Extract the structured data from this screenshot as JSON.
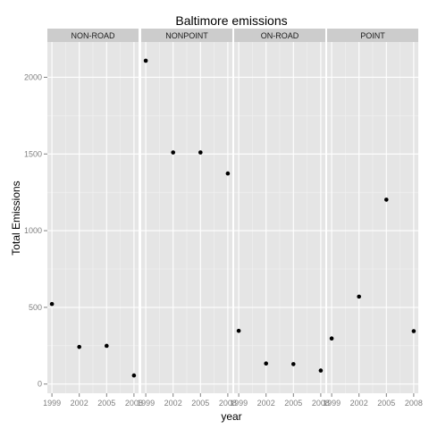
{
  "chart_data": {
    "type": "scatter",
    "title": "Baltimore emissions",
    "xlabel": "year",
    "ylabel": "Total Emissions",
    "x_ticks": [
      1999,
      2002,
      2005,
      2008
    ],
    "x_tick_labels": [
      "1999",
      "2002",
      "2005",
      "2008"
    ],
    "y_ticks": [
      0,
      500,
      1000,
      1500,
      2000
    ],
    "y_tick_labels": [
      "0",
      "500",
      "1000",
      "1500",
      "2000"
    ],
    "xlim": [
      1998.5,
      2008.5
    ],
    "ylim": [
      -60,
      2230
    ],
    "grid": true,
    "facets": [
      {
        "name": "NON-ROAD",
        "x": [
          1999,
          2002,
          2005,
          2008
        ],
        "values": [
          522,
          242,
          249,
          56
        ]
      },
      {
        "name": "NONPOINT",
        "x": [
          1999,
          2002,
          2005,
          2008
        ],
        "values": [
          2108,
          1510,
          1510,
          1373
        ]
      },
      {
        "name": "ON-ROAD",
        "x": [
          1999,
          2002,
          2005,
          2008
        ],
        "values": [
          347,
          134,
          130,
          88
        ]
      },
      {
        "name": "POINT",
        "x": [
          1999,
          2002,
          2005,
          2008
        ],
        "values": [
          297,
          570,
          1202,
          345
        ]
      }
    ]
  },
  "colors": {
    "panel_bg": "#e5e5e5",
    "strip_bg": "#cccccc",
    "grid_major": "#ffffff",
    "grid_minor": "#f2f2f2",
    "point": "#000000",
    "tick_text": "#7f7f7f",
    "title_text": "#000000"
  }
}
